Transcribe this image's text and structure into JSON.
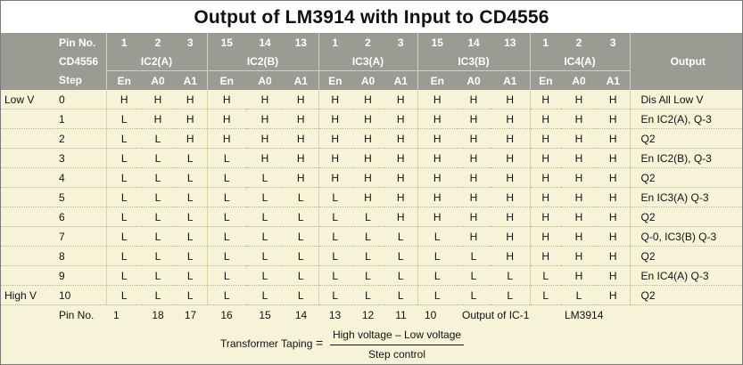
{
  "title": "Output of LM3914 with Input to CD4556",
  "header": {
    "pin_no_label": "Pin No.",
    "cd4556_label": "CD4556",
    "step_label": "Step",
    "output_label": "Output",
    "pins": [
      "1",
      "2",
      "3",
      "15",
      "14",
      "13",
      "1",
      "2",
      "3",
      "15",
      "14",
      "13",
      "1",
      "2",
      "3"
    ],
    "groups": [
      "IC2(A)",
      "IC2(B)",
      "IC3(A)",
      "IC3(B)",
      "IC4(A)"
    ],
    "sub": [
      "En",
      "A0",
      "A1",
      "En",
      "A0",
      "A1",
      "En",
      "A0",
      "A1",
      "En",
      "A0",
      "A1",
      "En",
      "A0",
      "A1"
    ]
  },
  "rows": [
    {
      "level": "Low V",
      "step": "0",
      "vals": [
        "H",
        "H",
        "H",
        "H",
        "H",
        "H",
        "H",
        "H",
        "H",
        "H",
        "H",
        "H",
        "H",
        "H",
        "H"
      ],
      "output": "Dis  All    Low V"
    },
    {
      "level": "",
      "step": "1",
      "vals": [
        "L",
        "H",
        "H",
        "H",
        "H",
        "H",
        "H",
        "H",
        "H",
        "H",
        "H",
        "H",
        "H",
        "H",
        "H"
      ],
      "output": "En  IC2(A), Q-3"
    },
    {
      "level": "",
      "step": "2",
      "vals": [
        "L",
        "L",
        "H",
        "H",
        "H",
        "H",
        "H",
        "H",
        "H",
        "H",
        "H",
        "H",
        "H",
        "H",
        "H"
      ],
      "output": "Q2"
    },
    {
      "level": "",
      "step": "3",
      "vals": [
        "L",
        "L",
        "L",
        "L",
        "H",
        "H",
        "H",
        "H",
        "H",
        "H",
        "H",
        "H",
        "H",
        "H",
        "H"
      ],
      "output": "En IC2(B),  Q-3"
    },
    {
      "level": "",
      "step": "4",
      "vals": [
        "L",
        "L",
        "L",
        "L",
        "L",
        "H",
        "H",
        "H",
        "H",
        "H",
        "H",
        "H",
        "H",
        "H",
        "H"
      ],
      "output": "Q2"
    },
    {
      "level": "",
      "step": "5",
      "vals": [
        "L",
        "L",
        "L",
        "L",
        "L",
        "L",
        "L",
        "H",
        "H",
        "H",
        "H",
        "H",
        "H",
        "H",
        "H"
      ],
      "output": "En  IC3(A)  Q-3"
    },
    {
      "level": "",
      "step": "6",
      "vals": [
        "L",
        "L",
        "L",
        "L",
        "L",
        "L",
        "L",
        "L",
        "H",
        "H",
        "H",
        "H",
        "H",
        "H",
        "H"
      ],
      "output": "Q2"
    },
    {
      "level": "",
      "step": "7",
      "vals": [
        "L",
        "L",
        "L",
        "L",
        "L",
        "L",
        "L",
        "L",
        "L",
        "L",
        "H",
        "H",
        "H",
        "H",
        "H"
      ],
      "output": "Q-0,  IC3(B)  Q-3"
    },
    {
      "level": "",
      "step": "8",
      "vals": [
        "L",
        "L",
        "L",
        "L",
        "L",
        "L",
        "L",
        "L",
        "L",
        "L",
        "L",
        "H",
        "H",
        "H",
        "H"
      ],
      "output": "Q2"
    },
    {
      "level": "",
      "step": "9",
      "vals": [
        "L",
        "L",
        "L",
        "L",
        "L",
        "L",
        "L",
        "L",
        "L",
        "L",
        "L",
        "L",
        "L",
        "H",
        "H"
      ],
      "output": "En  IC4(A)  Q-3"
    },
    {
      "level": "High V",
      "step": "10",
      "vals": [
        "L",
        "L",
        "L",
        "L",
        "L",
        "L",
        "L",
        "L",
        "L",
        "L",
        "L",
        "L",
        "L",
        "L",
        "H"
      ],
      "output": "Q2"
    }
  ],
  "footer": {
    "pin_no_label": "Pin No.",
    "pins": [
      "1",
      "18",
      "17",
      "16",
      "15",
      "14",
      "13",
      "12",
      "11",
      "10"
    ],
    "output_of": "Output of IC-1",
    "chip": "LM3914"
  },
  "formula": {
    "label": "Transformer Taping",
    "eq": "=",
    "numerator": "High voltage – Low voltage",
    "denominator": "Step control"
  }
}
